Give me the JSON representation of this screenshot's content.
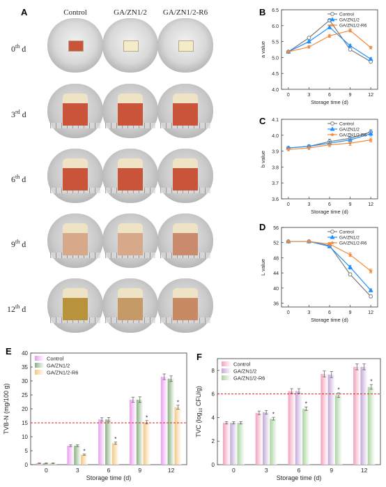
{
  "labels": {
    "A": "A",
    "B": "B",
    "C": "C",
    "D": "D",
    "E": "E",
    "F": "F"
  },
  "photos": {
    "columns": [
      "Control",
      "GA/ZN1/2",
      "GA/ZN1/2-R6"
    ],
    "rows": [
      {
        "num": "0",
        "sup": "th",
        "suffix": " d"
      },
      {
        "num": "3",
        "sup": "rd",
        "suffix": " d"
      },
      {
        "num": "6",
        "sup": "th",
        "suffix": " d"
      },
      {
        "num": "9",
        "sup": "th",
        "suffix": " d"
      },
      {
        "num": "12",
        "sup": "th",
        "suffix": " d"
      }
    ],
    "colors": {
      "meat": "#c9543a",
      "fat": "#efe3c5",
      "film": "#f3ecc8",
      "spoiled": "#b9923c"
    }
  },
  "colors": {
    "control": "#7a7a7a",
    "ga": "#1e90ff",
    "r6": "#f08a3c",
    "threshold": "#e02020"
  },
  "chart_data": [
    {
      "panel": "B",
      "type": "line",
      "x": [
        0,
        3,
        6,
        9,
        12
      ],
      "xlabel": "Storage time (d)",
      "ylabel": "a value",
      "ylim": [
        4.0,
        6.5
      ],
      "yticks": [
        "4.0",
        "4.5",
        "5.0",
        "5.5",
        "6.0",
        "6.5"
      ],
      "legend": "top-right",
      "series": [
        {
          "name": "Control",
          "values": [
            5.18,
            5.62,
            6.17,
            5.25,
            4.87
          ],
          "err": [
            0.03,
            0.04,
            0.05,
            0.04,
            0.04
          ],
          "marker": "circle"
        },
        {
          "name": "GA/ZN1/2",
          "values": [
            5.18,
            5.5,
            5.95,
            5.37,
            4.95
          ],
          "err": [
            0.03,
            0.05,
            0.05,
            0.04,
            0.04
          ],
          "marker": "triangle"
        },
        {
          "name": "GA/ZN1/2-R6",
          "values": [
            5.18,
            5.33,
            5.68,
            5.85,
            5.31
          ],
          "err": [
            0.03,
            0.04,
            0.05,
            0.05,
            0.04
          ],
          "marker": "star"
        }
      ]
    },
    {
      "panel": "C",
      "type": "line",
      "x": [
        0,
        3,
        6,
        9,
        12
      ],
      "xlabel": "Storage time (d)",
      "ylabel": "b value",
      "ylim": [
        3.6,
        4.1
      ],
      "yticks": [
        "3.6",
        "3.7",
        "3.8",
        "3.9",
        "4.0",
        "4.1"
      ],
      "legend": "top-right",
      "series": [
        {
          "name": "Control",
          "values": [
            3.92,
            3.93,
            3.96,
            3.98,
            4.02
          ],
          "err": [
            0.008,
            0.01,
            0.015,
            0.012,
            0.015
          ],
          "marker": "circle"
        },
        {
          "name": "GA/ZN1/2",
          "values": [
            3.92,
            3.93,
            3.95,
            3.97,
            4.01
          ],
          "err": [
            0.008,
            0.01,
            0.012,
            0.015,
            0.015
          ],
          "marker": "triangle"
        },
        {
          "name": "GA/ZN1/2-R6",
          "values": [
            3.91,
            3.92,
            3.94,
            3.95,
            3.97
          ],
          "err": [
            0.008,
            0.01,
            0.012,
            0.015,
            0.012
          ],
          "marker": "star"
        }
      ]
    },
    {
      "panel": "D",
      "type": "line",
      "x": [
        0,
        3,
        6,
        9,
        12
      ],
      "xlabel": "Storage time (d)",
      "ylabel": "L value",
      "ylim": [
        35,
        56
      ],
      "yticks": [
        "36",
        "40",
        "44",
        "48",
        "52",
        "56"
      ],
      "legend": "top-right",
      "series": [
        {
          "name": "Control",
          "values": [
            52.3,
            52.3,
            51.2,
            43.6,
            37.8
          ],
          "err": [
            0.3,
            0.3,
            0.4,
            0.4,
            0.4
          ],
          "marker": "circle"
        },
        {
          "name": "GA/ZN1/2",
          "values": [
            52.3,
            52.3,
            51.0,
            45.5,
            39.4
          ],
          "err": [
            0.3,
            0.3,
            0.4,
            0.5,
            0.4
          ],
          "marker": "triangle"
        },
        {
          "name": "GA/ZN1/2-R6",
          "values": [
            52.3,
            52.3,
            51.6,
            48.8,
            44.5
          ],
          "err": [
            0.3,
            0.3,
            0.4,
            0.5,
            0.5
          ],
          "marker": "star"
        }
      ]
    },
    {
      "panel": "E",
      "type": "bar",
      "categories": [
        "0",
        "3",
        "6",
        "9",
        "12"
      ],
      "xlabel": "Storage time (d)",
      "ylabel": "TVB-N (mg/100 g)",
      "ylim": [
        0,
        40
      ],
      "yticks": [
        "0",
        "5",
        "10",
        "15",
        "20",
        "25",
        "30",
        "35",
        "40"
      ],
      "threshold": 15,
      "legend": "top-left",
      "series": [
        {
          "name": "Control",
          "values": [
            0.5,
            6.8,
            16.2,
            23.3,
            31.5
          ],
          "err": [
            0.1,
            0.3,
            0.6,
            0.9,
            1.0
          ],
          "color": "#e99cf0"
        },
        {
          "name": "GA/ZN1/2",
          "values": [
            0.5,
            6.8,
            16.2,
            23.3,
            30.8
          ],
          "err": [
            0.1,
            0.3,
            0.7,
            1.0,
            1.0
          ],
          "color": "#86b07e"
        },
        {
          "name": "GA/ZN1/2-R6",
          "values": [
            0.5,
            3.6,
            7.7,
            15.2,
            20.6
          ],
          "err": [
            0.1,
            0.2,
            0.4,
            0.6,
            0.7
          ],
          "color": "#f3c77e"
        }
      ],
      "annotations": [
        {
          "cat": "3",
          "series": 2,
          "text": "*"
        },
        {
          "cat": "6",
          "series": 2,
          "text": "*"
        },
        {
          "cat": "9",
          "series": 2,
          "text": "*"
        },
        {
          "cat": "12",
          "series": 2,
          "text": "*"
        }
      ]
    },
    {
      "panel": "F",
      "type": "bar",
      "categories": [
        "0",
        "3",
        "6",
        "9",
        "12"
      ],
      "xlabel": "Storage time (d)",
      "ylabel_pre": "TVC (log",
      "ylabel_sub": "10",
      "ylabel_post": " CFU/g)",
      "ylim": [
        0,
        9
      ],
      "yticks": [
        "0",
        "2",
        "4",
        "6",
        "8"
      ],
      "threshold": 6,
      "legend": "top-left",
      "series": [
        {
          "name": "Control",
          "values": [
            3.55,
            4.4,
            6.25,
            7.7,
            8.3
          ],
          "err": [
            0.1,
            0.15,
            0.2,
            0.25,
            0.25
          ],
          "color": "#f2a0bb"
        },
        {
          "name": "GA/ZN1/2",
          "values": [
            3.55,
            4.45,
            6.25,
            7.65,
            8.3
          ],
          "err": [
            0.1,
            0.15,
            0.2,
            0.25,
            0.25
          ],
          "color": "#c3a7d8"
        },
        {
          "name": "GA/ZN1/2-R6",
          "values": [
            3.55,
            3.9,
            4.75,
            5.9,
            6.6
          ],
          "err": [
            0.1,
            0.12,
            0.15,
            0.2,
            0.2
          ],
          "color": "#a7d39c"
        }
      ],
      "annotations": [
        {
          "cat": "3",
          "series": 2,
          "text": "*"
        },
        {
          "cat": "6",
          "series": 2,
          "text": "*"
        },
        {
          "cat": "9",
          "series": 2,
          "text": "*"
        },
        {
          "cat": "12",
          "series": 2,
          "text": "*"
        }
      ]
    }
  ]
}
